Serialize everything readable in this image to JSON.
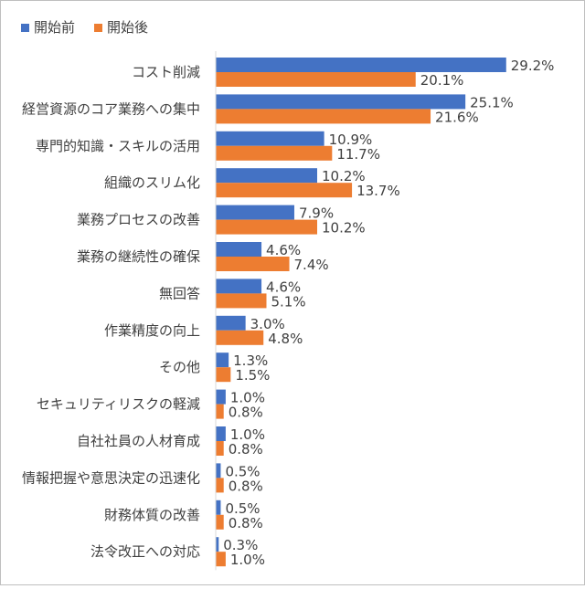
{
  "chart_data": {
    "type": "bar",
    "orientation": "horizontal",
    "categories": [
      "コスト削減",
      "経営資源のコア業務への集中",
      "専門的知識・スキルの活用",
      "組織のスリム化",
      "業務プロセスの改善",
      "業務の継続性の確保",
      "無回答",
      "作業精度の向上",
      "その他",
      "セキュリティリスクの軽減",
      "自社社員の人材育成",
      "情報把握や意思決定の迅速化",
      "財務体質の改善",
      "法令改正への対応"
    ],
    "series": [
      {
        "name": "開始前",
        "color": "#4472c4",
        "values": [
          29.2,
          25.1,
          10.9,
          10.2,
          7.9,
          4.6,
          4.6,
          3.0,
          1.3,
          1.0,
          1.0,
          0.5,
          0.5,
          0.3
        ],
        "labels": [
          "29.2%",
          "25.1%",
          "10.9%",
          "10.2%",
          "7.9%",
          "4.6%",
          "4.6%",
          "3.0%",
          "1.3%",
          "1.0%",
          "1.0%",
          "0.5%",
          "0.5%",
          "0.3%"
        ]
      },
      {
        "name": "開始後",
        "color": "#ed7d31",
        "values": [
          20.1,
          21.6,
          11.7,
          13.7,
          10.2,
          7.4,
          5.1,
          4.8,
          1.5,
          0.8,
          0.8,
          0.8,
          0.8,
          1.0
        ],
        "labels": [
          "20.1%",
          "21.6%",
          "11.7%",
          "13.7%",
          "10.2%",
          "7.4%",
          "5.1%",
          "4.8%",
          "1.5%",
          "0.8%",
          "0.8%",
          "0.8%",
          "0.8%",
          "1.0%"
        ]
      }
    ],
    "xlim": [
      0,
      34
    ],
    "grid": false,
    "legend_position": "top-left",
    "axis_color": "#d9d9d9",
    "text_color": "#404040"
  }
}
